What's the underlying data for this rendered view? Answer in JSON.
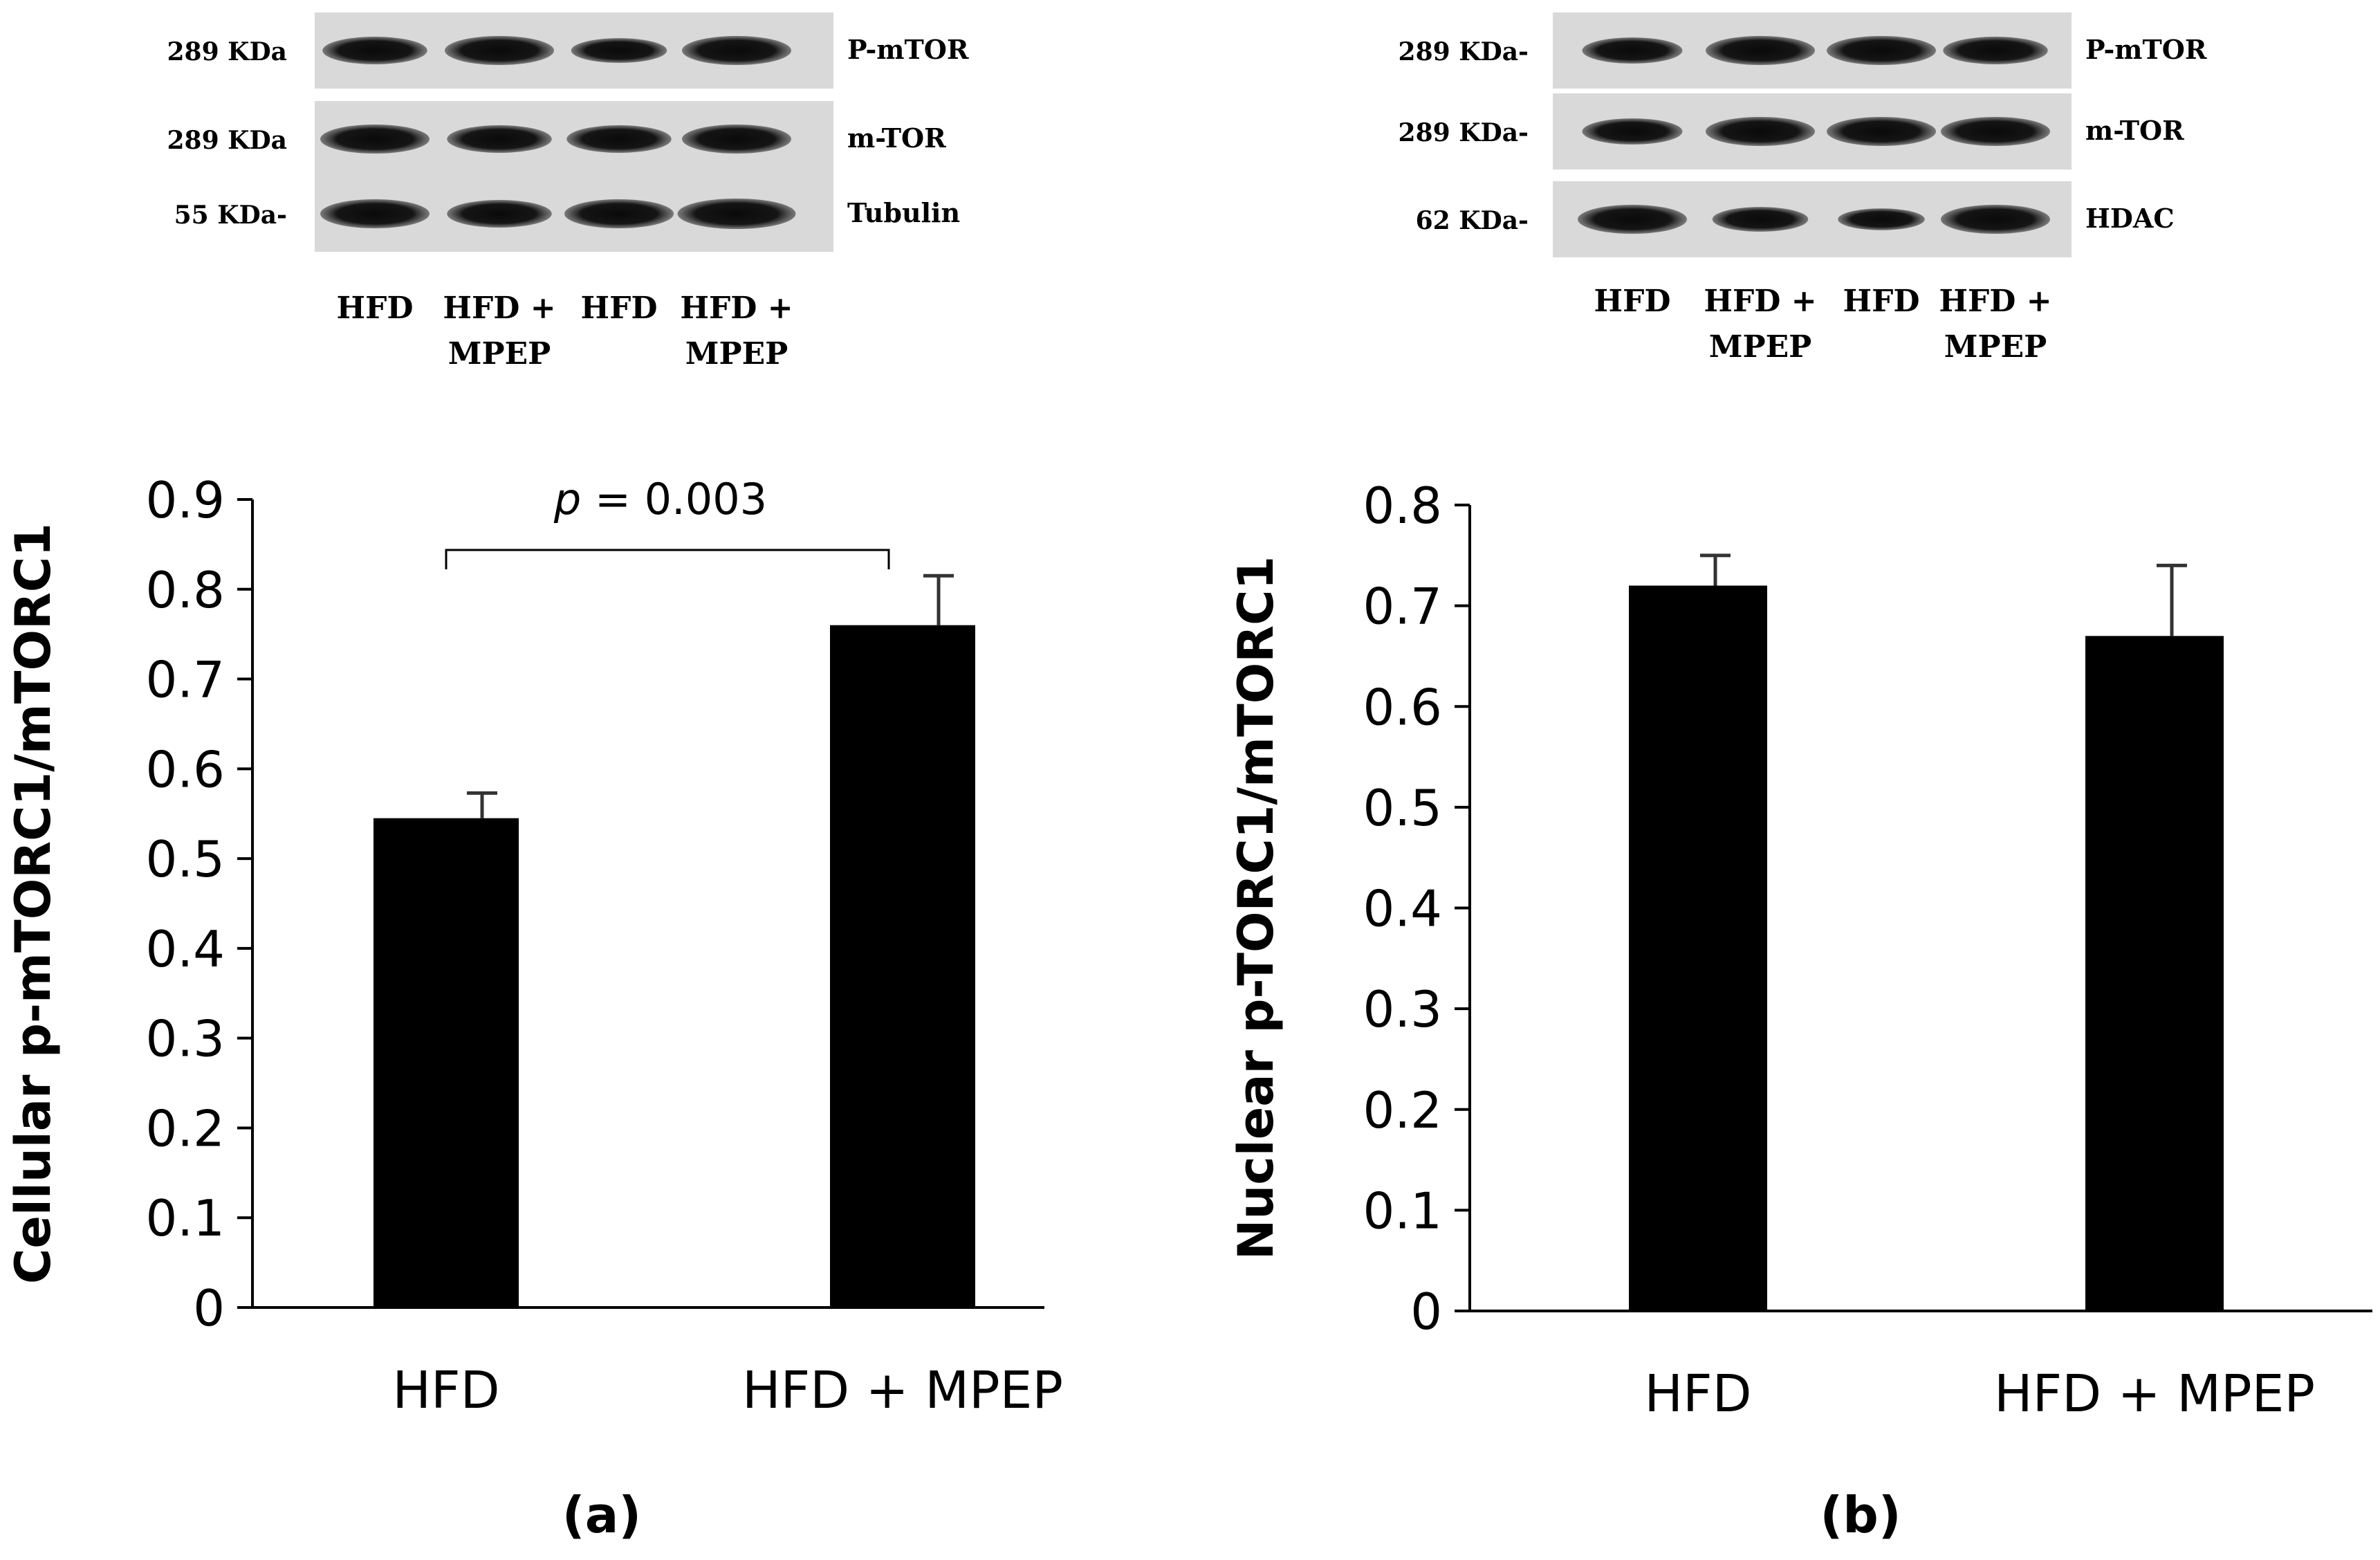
{
  "blots": {
    "a": {
      "rows": [
        {
          "kda": "289 KDa",
          "protein": "P-mTOR",
          "lanes": [
            0.95,
            1.0,
            0.85,
            1.0
          ]
        },
        {
          "kda": "289 KDa",
          "protein": "m-TOR",
          "lanes": [
            1.0,
            0.95,
            0.95,
            1.0
          ]
        },
        {
          "kda": "55 KDa-",
          "protein": "Tubulin",
          "lanes": [
            1.0,
            0.95,
            1.0,
            1.1
          ]
        }
      ],
      "lane_labels": [
        {
          "line1": "HFD",
          "line2": ""
        },
        {
          "line1": "HFD +",
          "line2": "MPEP"
        },
        {
          "line1": "HFD",
          "line2": ""
        },
        {
          "line1": "HFD +",
          "line2": "MPEP"
        }
      ]
    },
    "b": {
      "rows": [
        {
          "kda": "289 KDa-",
          "protein": "P-mTOR",
          "lanes": [
            0.9,
            1.0,
            1.0,
            0.95
          ]
        },
        {
          "kda": "289 KDa-",
          "protein": "m-TOR",
          "lanes": [
            0.9,
            1.0,
            1.0,
            1.0
          ]
        },
        {
          "kda": "62 KDa-",
          "protein": "HDAC",
          "lanes": [
            1.0,
            0.85,
            0.75,
            1.0
          ]
        }
      ],
      "lane_labels": [
        {
          "line1": "HFD",
          "line2": ""
        },
        {
          "line1": "HFD +",
          "line2": "MPEP"
        },
        {
          "line1": "HFD",
          "line2": ""
        },
        {
          "line1": "HFD +",
          "line2": "MPEP"
        }
      ]
    }
  },
  "chart_data": [
    {
      "type": "bar",
      "panel_label": "(a)",
      "categories": [
        "HFD",
        "HFD + MPEP"
      ],
      "values": [
        0.545,
        0.76
      ],
      "errors": [
        0.028,
        0.055
      ],
      "ylabel": "Cellular p-mTORC1/mTORC1",
      "ylim": [
        0,
        0.9
      ],
      "yticks": [
        "0",
        "0.1",
        "0.2",
        "0.3",
        "0.4",
        "0.5",
        "0.6",
        "0.7",
        "0.8",
        "0.9"
      ],
      "annotation": {
        "p_italic": "p",
        "rest": " = 0.003"
      },
      "bar_color": "#000000"
    },
    {
      "type": "bar",
      "panel_label": "(b)",
      "categories": [
        "HFD",
        "HFD + MPEP"
      ],
      "values": [
        0.72,
        0.67
      ],
      "errors": [
        0.03,
        0.07
      ],
      "ylabel": "Nuclear p-TORC1/mTORC1",
      "ylim": [
        0,
        0.8
      ],
      "yticks": [
        "0",
        "0.1",
        "0.2",
        "0.3",
        "0.4",
        "0.5",
        "0.6",
        "0.7",
        "0.8"
      ],
      "bar_color": "#000000"
    }
  ]
}
